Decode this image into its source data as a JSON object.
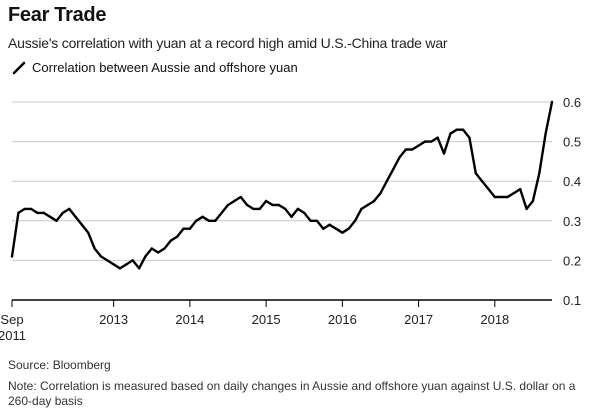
{
  "title": "Fear Trade",
  "subtitle": "Aussie's correlation with yuan at a record high amid U.S.-China trade war",
  "source": "Source: Bloomberg",
  "note": "Note: Correlation is measured based on daily changes in Aussie and offshore yuan against U.S. dollar on a 260-day basis",
  "colors": {
    "line": "#000000",
    "axis": "#000000",
    "grid": "#c8c8c8",
    "text": "#222222"
  },
  "chart_data": {
    "type": "line",
    "title": "Fear Trade",
    "subtitle": "Aussie's correlation with yuan at a record high amid U.S.-China trade war",
    "legend": {
      "position": "top-left",
      "entries": [
        "Correlation between Aussie and offshore yuan"
      ]
    },
    "xlabel": "",
    "ylabel": "",
    "grid": true,
    "ylim": [
      0.1,
      0.6
    ],
    "xlim": [
      "2011-09",
      "2018-10"
    ],
    "yticks": [
      "0.1",
      "0.2",
      "0.3",
      "0.4",
      "0.5",
      "0.6"
    ],
    "xticks": [
      {
        "label": [
          "Sep",
          "2011"
        ],
        "at": "2011-09"
      },
      {
        "label": [
          "2013"
        ],
        "at": "2013-01"
      },
      {
        "label": [
          "2014"
        ],
        "at": "2014-01"
      },
      {
        "label": [
          "2015"
        ],
        "at": "2015-01"
      },
      {
        "label": [
          "2016"
        ],
        "at": "2016-01"
      },
      {
        "label": [
          "2017"
        ],
        "at": "2017-01"
      },
      {
        "label": [
          "2018"
        ],
        "at": "2018-01"
      }
    ],
    "series": [
      {
        "name": "Correlation between Aussie and offshore yuan",
        "x": [
          "2011-09",
          "2011-10",
          "2011-11",
          "2011-12",
          "2012-01",
          "2012-02",
          "2012-03",
          "2012-04",
          "2012-05",
          "2012-06",
          "2012-07",
          "2012-08",
          "2012-09",
          "2012-10",
          "2012-11",
          "2012-12",
          "2013-01",
          "2013-02",
          "2013-03",
          "2013-04",
          "2013-05",
          "2013-06",
          "2013-07",
          "2013-08",
          "2013-09",
          "2013-10",
          "2013-11",
          "2013-12",
          "2014-01",
          "2014-02",
          "2014-03",
          "2014-04",
          "2014-05",
          "2014-06",
          "2014-07",
          "2014-08",
          "2014-09",
          "2014-10",
          "2014-11",
          "2014-12",
          "2015-01",
          "2015-02",
          "2015-03",
          "2015-04",
          "2015-05",
          "2015-06",
          "2015-07",
          "2015-08",
          "2015-09",
          "2015-10",
          "2015-11",
          "2015-12",
          "2016-01",
          "2016-02",
          "2016-03",
          "2016-04",
          "2016-05",
          "2016-06",
          "2016-07",
          "2016-08",
          "2016-09",
          "2016-10",
          "2016-11",
          "2016-12",
          "2017-01",
          "2017-02",
          "2017-03",
          "2017-04",
          "2017-05",
          "2017-06",
          "2017-07",
          "2017-08",
          "2017-09",
          "2017-10",
          "2017-11",
          "2017-12",
          "2018-01",
          "2018-02",
          "2018-03",
          "2018-04",
          "2018-05",
          "2018-06",
          "2018-07",
          "2018-08",
          "2018-09",
          "2018-10"
        ],
        "values": [
          0.21,
          0.32,
          0.33,
          0.33,
          0.32,
          0.32,
          0.31,
          0.3,
          0.32,
          0.33,
          0.31,
          0.29,
          0.27,
          0.23,
          0.21,
          0.2,
          0.19,
          0.18,
          0.19,
          0.2,
          0.18,
          0.21,
          0.23,
          0.22,
          0.23,
          0.25,
          0.26,
          0.28,
          0.28,
          0.3,
          0.31,
          0.3,
          0.3,
          0.32,
          0.34,
          0.35,
          0.36,
          0.34,
          0.33,
          0.33,
          0.35,
          0.34,
          0.34,
          0.33,
          0.31,
          0.33,
          0.32,
          0.3,
          0.3,
          0.28,
          0.29,
          0.28,
          0.27,
          0.28,
          0.3,
          0.33,
          0.34,
          0.35,
          0.37,
          0.4,
          0.43,
          0.46,
          0.48,
          0.48,
          0.49,
          0.5,
          0.5,
          0.51,
          0.47,
          0.52,
          0.53,
          0.53,
          0.51,
          0.42,
          0.4,
          0.38,
          0.36,
          0.36,
          0.36,
          0.37,
          0.38,
          0.33,
          0.35,
          0.42,
          0.52,
          0.6
        ]
      }
    ]
  }
}
